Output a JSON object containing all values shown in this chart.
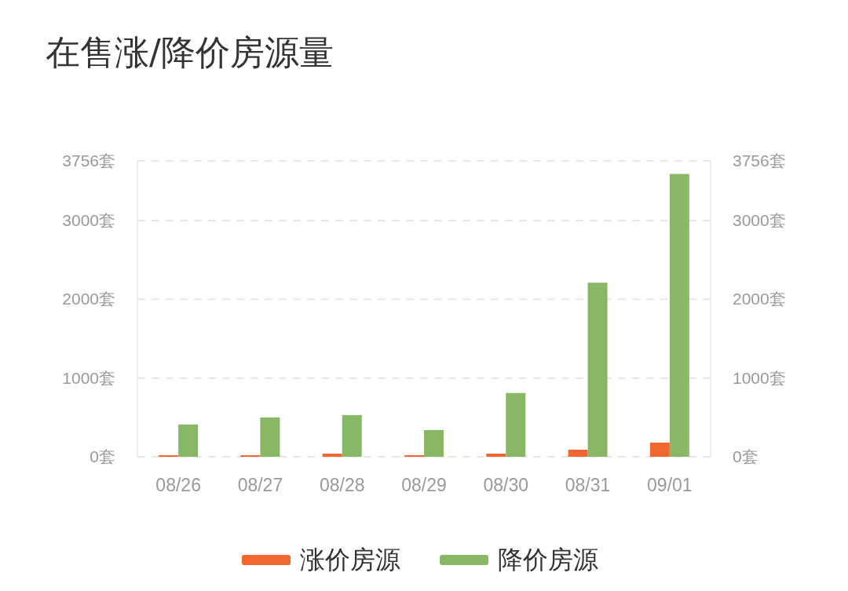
{
  "chart_data": {
    "type": "bar",
    "title": "在售涨/降价房源量",
    "categories": [
      "08/26",
      "08/27",
      "08/28",
      "08/29",
      "08/30",
      "08/31",
      "09/01"
    ],
    "series": [
      {
        "name": "涨价房源",
        "color": "#f26631",
        "values": [
          20,
          20,
          40,
          20,
          40,
          90,
          180
        ]
      },
      {
        "name": "降价房源",
        "color": "#88b865",
        "values": [
          410,
          500,
          530,
          340,
          810,
          2210,
          3590
        ]
      }
    ],
    "ylim": [
      0,
      3756
    ],
    "yticks": [
      {
        "value": 0,
        "label": "0套"
      },
      {
        "value": 1000,
        "label": "1000套"
      },
      {
        "value": 2000,
        "label": "2000套"
      },
      {
        "value": 3000,
        "label": "3000套"
      },
      {
        "value": 3756,
        "label": "3756套"
      }
    ],
    "y2lim": [
      0,
      3756
    ],
    "y2ticks": [
      {
        "value": 0,
        "label": "0套"
      },
      {
        "value": 1000,
        "label": "1000套"
      },
      {
        "value": 2000,
        "label": "2000套"
      },
      {
        "value": 3000,
        "label": "3000套"
      },
      {
        "value": 3756,
        "label": "3756套"
      }
    ],
    "grid": "y",
    "legend": "bottom"
  }
}
